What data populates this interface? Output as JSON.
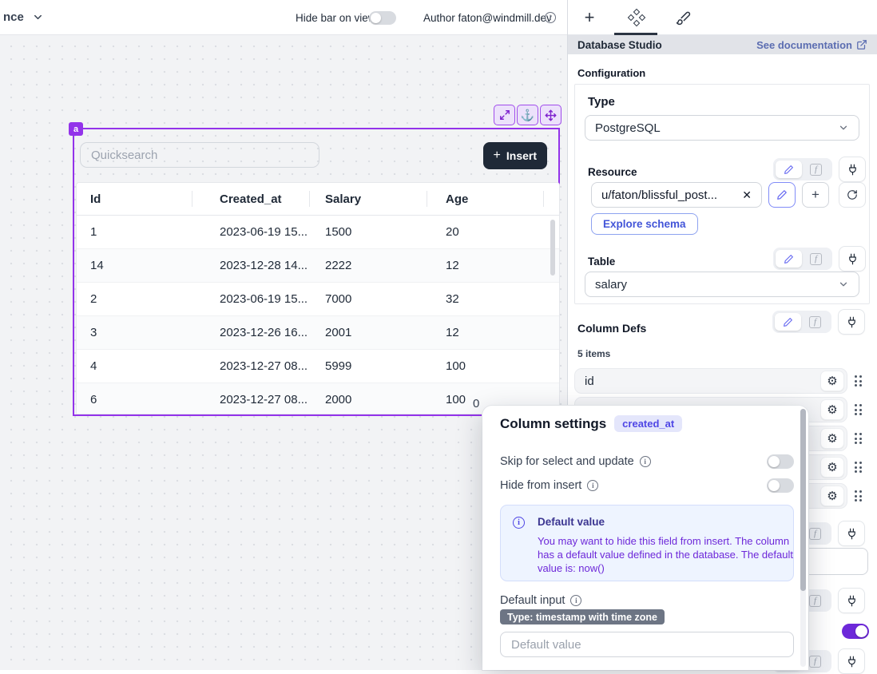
{
  "topbar": {
    "breadcrumb_partial": "nce",
    "hide_bar_label": "Hide bar on view",
    "author_label": "Author faton@windmill.dev"
  },
  "canvas": {
    "component_badge": "a",
    "quicksearch_placeholder": "Quicksearch",
    "insert_label": "Insert",
    "pagination_partial": "0",
    "table": {
      "columns": [
        "Id",
        "Created_at",
        "Salary",
        "Age"
      ],
      "rows": [
        [
          "1",
          "2023-06-19 15...",
          "1500",
          "20"
        ],
        [
          "14",
          "2023-12-28 14...",
          "2222",
          "12"
        ],
        [
          "2",
          "2023-06-19 15...",
          "7000",
          "32"
        ],
        [
          "3",
          "2023-12-26 16...",
          "2001",
          "12"
        ],
        [
          "4",
          "2023-12-27 08...",
          "5999",
          "100"
        ],
        [
          "6",
          "2023-12-27 08...",
          "2000",
          "100"
        ]
      ]
    }
  },
  "panel": {
    "header": {
      "title": "Database Studio",
      "doc_link": "See documentation"
    },
    "configuration_label": "Configuration",
    "type_field": {
      "label": "Type",
      "value": "PostgreSQL"
    },
    "resource": {
      "label": "Resource",
      "value": "u/faton/blissful_post...",
      "explore_button": "Explore schema"
    },
    "table_field": {
      "label": "Table",
      "value": "salary"
    },
    "column_defs": {
      "label": "Column Defs",
      "count_label": "5 items",
      "items": [
        "id",
        "",
        "",
        "",
        ""
      ]
    },
    "hidden_toggle_state": "on"
  },
  "modal": {
    "title": "Column settings",
    "badge": "created_at",
    "toggles": [
      {
        "label": "Skip for select and update",
        "state": "off"
      },
      {
        "label": "Hide from insert",
        "state": "off"
      }
    ],
    "info_box": {
      "title": "Default value",
      "body": "You may want to hide this field from insert. The column has a default value defined in the database. The default value is: now()"
    },
    "default_input": {
      "label": "Default input",
      "type_badge": "Type: timestamp with time zone",
      "placeholder": "Default value"
    }
  },
  "colors": {
    "selection_purple": "#9333ea",
    "toggle_on_purple": "#6d28d9",
    "doc_link_blue": "#5b6db1",
    "insert_button_bg": "#1f2937",
    "pencil_active": "#6366f1",
    "explore_text": "#4355d8",
    "info_box_bg": "#eef4ff",
    "info_title": "#3b3591",
    "info_body": "#6d28d9",
    "column_badge_bg": "#e4e6fb",
    "column_badge_text": "#4f46e5",
    "type_badge_bg": "#6d7584"
  }
}
